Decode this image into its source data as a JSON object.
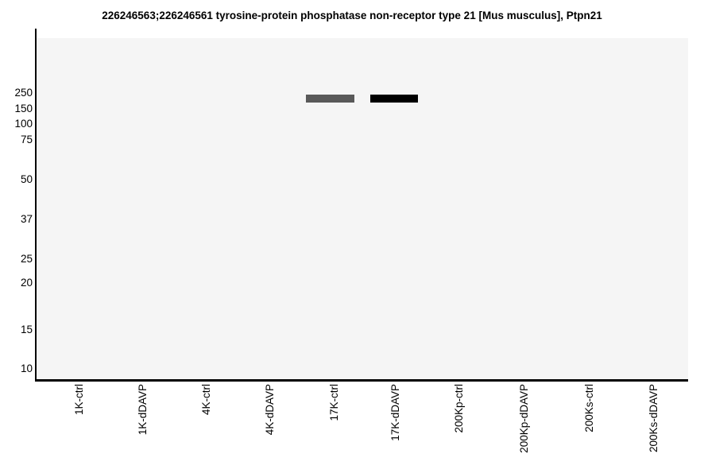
{
  "title": "226246563;226246561 tyrosine-protein phosphatase non-receptor type 21 [Mus musculus], Ptpn21",
  "yaxis": {
    "labels": [
      "250",
      "150",
      "100",
      "75",
      "50",
      "37",
      "25",
      "20",
      "15",
      "10"
    ]
  },
  "xaxis": {
    "labels": [
      "1K-ctrl",
      "1K-dDAVP",
      "4K-ctrl",
      "4K-dDAVP",
      "17K-ctrl",
      "17K-dDAVP",
      "200Kp-ctrl",
      "200Kp-dDAVP",
      "200Ks-ctrl",
      "200Ks-dDAVP"
    ]
  },
  "colors": {
    "plot_background": "#f5f5f5",
    "axis": "#000000",
    "band_medium": "#595959",
    "band_strong": "#000000"
  },
  "chart_data": {
    "type": "gel_blot",
    "subtype": "virtual western blot (protein abundance vs molecular weight)",
    "title": "226246563;226246561 tyrosine-protein phosphatase non-receptor type 21 [Mus musculus], Ptpn21",
    "mw_markers_kda": [
      250,
      150,
      100,
      75,
      50,
      37,
      25,
      20,
      15,
      10
    ],
    "lanes": [
      "1K-ctrl",
      "1K-dDAVP",
      "4K-ctrl",
      "4K-dDAVP",
      "17K-ctrl",
      "17K-dDAVP",
      "200Kp-ctrl",
      "200Kp-dDAVP",
      "200Ks-ctrl",
      "200Ks-dDAVP"
    ],
    "bands": [
      {
        "lane": "17K-ctrl",
        "apparent_mw_kda": 200,
        "relative_intensity": 0.65,
        "color": "#595959"
      },
      {
        "lane": "17K-dDAVP",
        "apparent_mw_kda": 200,
        "relative_intensity": 1.0,
        "color": "#000000"
      }
    ],
    "grid": false,
    "legend": false,
    "xlabel": "",
    "ylabel": "",
    "layout": "10 evenly spaced lanes; molecular-weight ladder labels on left (log-spaced ladder); no tick marks"
  }
}
